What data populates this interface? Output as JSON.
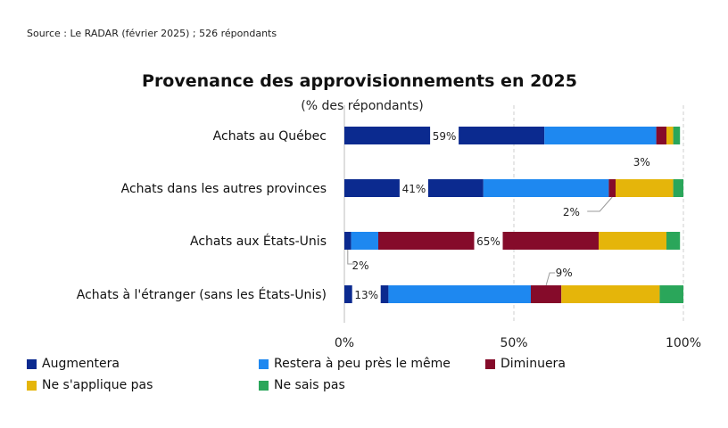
{
  "source": "Source : Le RADAR (février 2025) ; 526 répondants",
  "chart_data": {
    "type": "bar",
    "orientation": "horizontal",
    "stacked": true,
    "title": "Provenance des approvisionnements en 2025",
    "subtitle": "(% des répondants)",
    "categories": [
      "Achats au Québec",
      "Achats dans les autres provinces",
      "Achats aux États-Unis",
      "Achats à l'étranger (sans les États-Unis)"
    ],
    "series": [
      {
        "name": "Augmentera",
        "color": "#0b2a8f",
        "values": [
          59,
          41,
          2,
          13
        ]
      },
      {
        "name": "Restera à peu près le même",
        "color": "#1e88f0",
        "values": [
          33,
          37,
          8,
          42
        ]
      },
      {
        "name": "Diminuera",
        "color": "#850b2a",
        "values": [
          3,
          2,
          65,
          9
        ]
      },
      {
        "name": "Ne s'applique pas",
        "color": "#e5b50a",
        "values": [
          2,
          17,
          20,
          29
        ]
      },
      {
        "name": "Ne sais pas",
        "color": "#2aa65a",
        "values": [
          2,
          3,
          4,
          7
        ]
      }
    ],
    "data_labels": [
      {
        "category": 0,
        "series": 0,
        "text": "59%"
      },
      {
        "category": 0,
        "series": 2,
        "text": "3%"
      },
      {
        "category": 1,
        "series": 0,
        "text": "41%"
      },
      {
        "category": 1,
        "series": 2,
        "text": "2%"
      },
      {
        "category": 2,
        "series": 0,
        "text": "2%"
      },
      {
        "category": 2,
        "series": 2,
        "text": "65%"
      },
      {
        "category": 3,
        "series": 0,
        "text": "13%"
      },
      {
        "category": 3,
        "series": 2,
        "text": "9%"
      }
    ],
    "xlim": [
      0,
      100
    ],
    "xticks": [
      "0%",
      "50%",
      "100%"
    ],
    "grid": "vertical dashed",
    "legend_position": "bottom"
  }
}
